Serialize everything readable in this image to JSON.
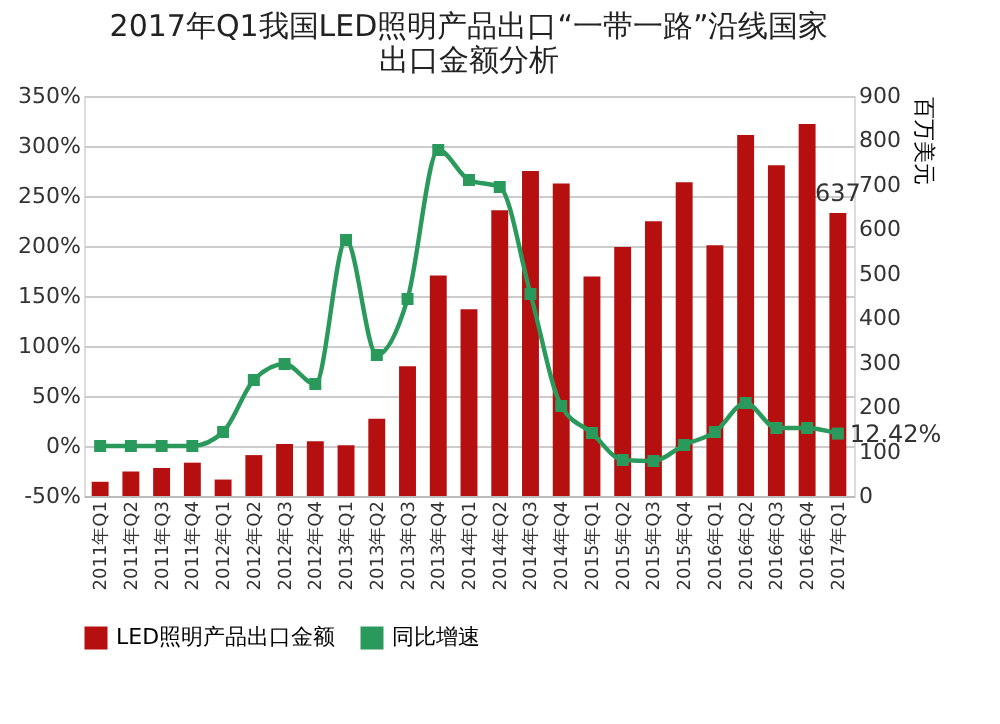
{
  "chart_data": {
    "type": "bar",
    "title": "2017年Q1我国LED照明产品出口“一带一路”沿线国家出口金额分析",
    "y2label": "百万美元",
    "categories": [
      "2011年Q1",
      "2011年Q2",
      "2011年Q3",
      "2011年Q4",
      "2012年Q1",
      "2012年Q2",
      "2012年Q3",
      "2012年Q4",
      "2013年Q1",
      "2013年Q2",
      "2013年Q3",
      "2013年Q4",
      "2014年Q1",
      "2014年Q2",
      "2014年Q3",
      "2014年Q4",
      "2015年Q1",
      "2015年Q2",
      "2015年Q3",
      "2015年Q4",
      "2016年Q1",
      "2016年Q2",
      "2016年Q3",
      "2016年Q4",
      "2017年Q1"
    ],
    "series": [
      {
        "name": "LED照明产品出口金额",
        "axis": "y2",
        "color": "#b5100f",
        "values": [
          32,
          55,
          63,
          75,
          37,
          92,
          117,
          123,
          114,
          174,
          292,
          496,
          420,
          643,
          731,
          703,
          494,
          560,
          618,
          706,
          564,
          812,
          744,
          837,
          637
        ],
        "value_labels": [
          null,
          null,
          null,
          null,
          null,
          null,
          null,
          null,
          null,
          null,
          null,
          null,
          null,
          null,
          null,
          null,
          null,
          null,
          null,
          null,
          null,
          null,
          null,
          null,
          "637"
        ]
      },
      {
        "name": "同比增速",
        "type": "line",
        "color": "#2a9a5c",
        "values": [
          0,
          0,
          0,
          0,
          14,
          66,
          82,
          62,
          206,
          91,
          147,
          296,
          266,
          259,
          152,
          40,
          13,
          -14,
          -15,
          1,
          14,
          43,
          18,
          18,
          12.42
        ],
        "value_labels": [
          null,
          null,
          null,
          null,
          null,
          null,
          null,
          null,
          null,
          null,
          null,
          null,
          null,
          null,
          null,
          null,
          null,
          null,
          null,
          null,
          null,
          null,
          null,
          null,
          "12.42%"
        ]
      }
    ],
    "ylim": [
      -50,
      350
    ],
    "yticks": [
      {
        "value": -50,
        "label": "-50%"
      },
      {
        "value": 0,
        "label": "0%"
      },
      {
        "value": 50,
        "label": "50%"
      },
      {
        "value": 100,
        "label": "100%"
      },
      {
        "value": 150,
        "label": "150%"
      },
      {
        "value": 200,
        "label": "200%"
      },
      {
        "value": 250,
        "label": "250%"
      },
      {
        "value": 300,
        "label": "300%"
      },
      {
        "value": 350,
        "label": "350%"
      }
    ],
    "y2lim": [
      0,
      900
    ],
    "y2ticks": [
      0,
      100,
      200,
      300,
      400,
      500,
      600,
      700,
      800,
      900
    ],
    "grid": "y",
    "legend": "bottom",
    "marker": "square",
    "line_style": "solid"
  }
}
